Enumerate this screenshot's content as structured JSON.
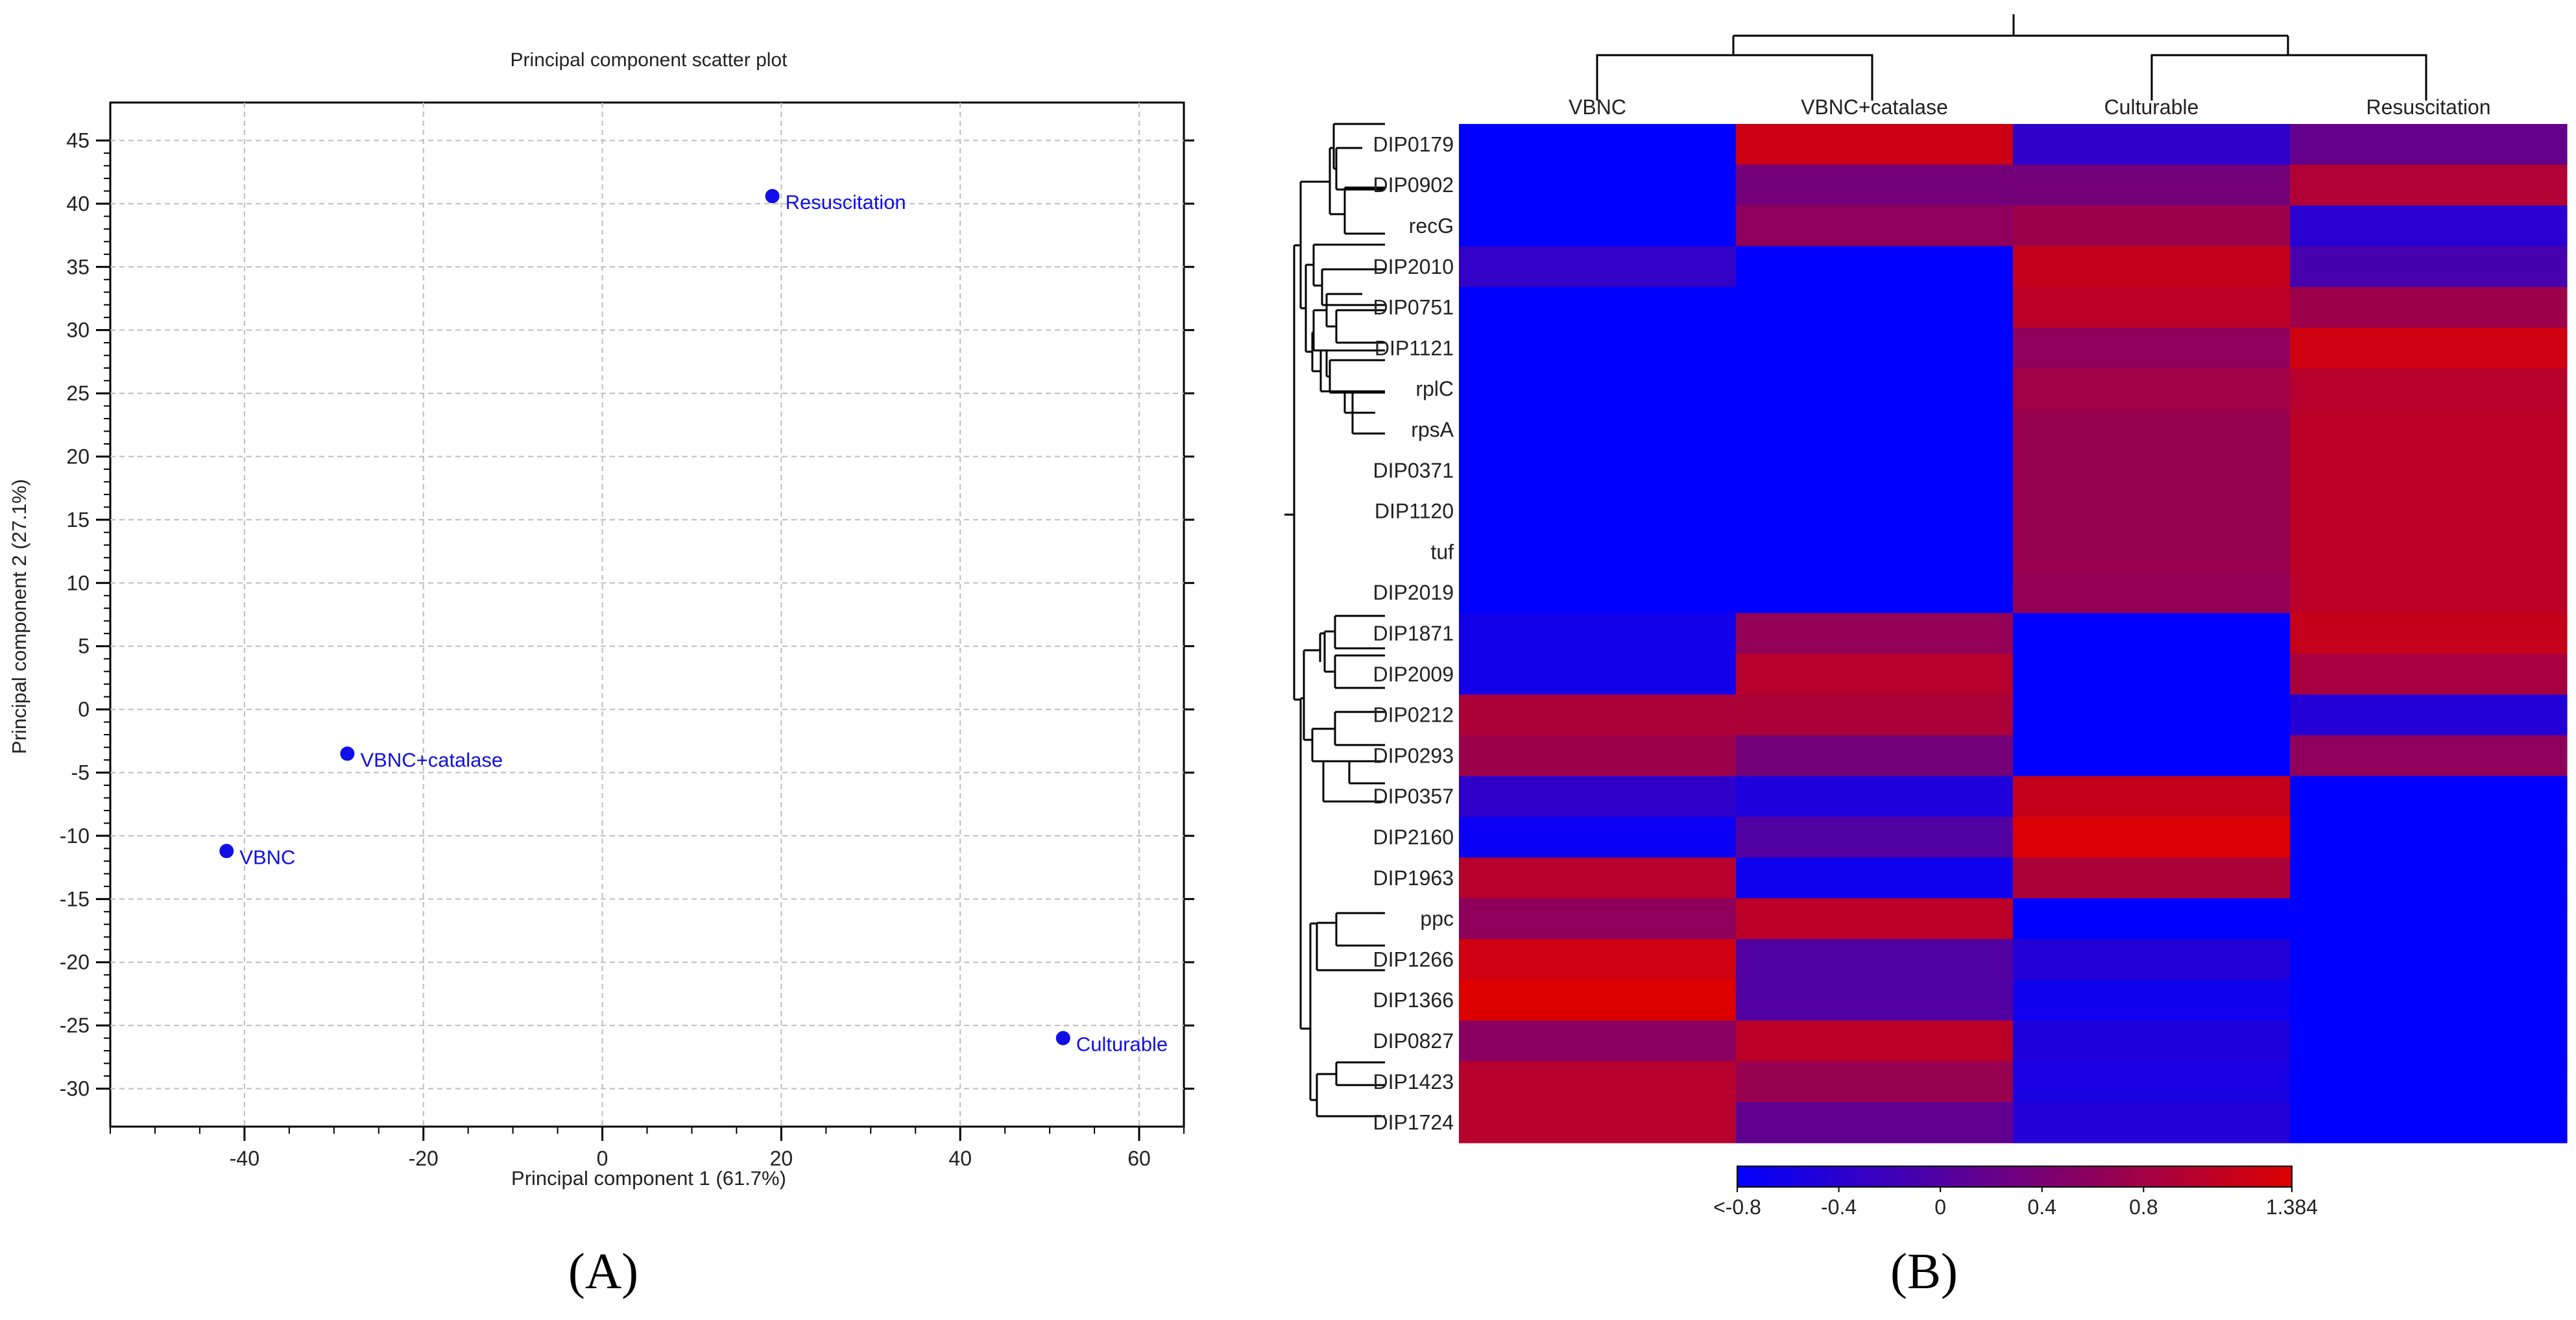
{
  "panels": {
    "a_label": "(A)",
    "b_label": "(B)"
  },
  "colors": {
    "point": "#1010e6",
    "low": "#0000ff",
    "high": "#dd0000"
  },
  "chart_data": [
    {
      "type": "scatter",
      "title": "Principal component scatter plot",
      "xlabel": "Principal component 1 (61.7%)",
      "ylabel": "Principal component 2 (27.1%)",
      "xlim": [
        -55,
        65
      ],
      "ylim": [
        -33,
        48
      ],
      "xticks": [
        -40,
        -20,
        0,
        20,
        40,
        60
      ],
      "yticks": [
        45,
        40,
        35,
        30,
        25,
        20,
        15,
        10,
        5,
        0,
        -5,
        -10,
        -15,
        -20,
        -25,
        -30
      ],
      "grid": true,
      "points": [
        {
          "label": "Resuscitation",
          "x": 19,
          "y": 40.6
        },
        {
          "label": "VBNC+catalase",
          "x": -28.5,
          "y": -3.5
        },
        {
          "label": "VBNC",
          "x": -42,
          "y": -11.2
        },
        {
          "label": "Culturable",
          "x": 51.5,
          "y": -26
        }
      ]
    },
    {
      "type": "heatmap",
      "columns": [
        "VBNC",
        "VBNC+catalase",
        "Culturable",
        "Resuscitation"
      ],
      "rows": [
        "DIP0179",
        "DIP0902",
        "recG",
        "DIP2010",
        "DIP0751",
        "DIP1121",
        "rplC",
        "rpsA",
        "DIP0371",
        "DIP1120",
        "tuf",
        "DIP2019",
        "DIP1871",
        "DIP2009",
        "DIP0212",
        "DIP0293",
        "DIP0357",
        "DIP2160",
        "DIP1963",
        "ppc",
        "DIP1266",
        "DIP1366",
        "DIP0827",
        "DIP1423",
        "DIP1724"
      ],
      "values": [
        [
          -0.8,
          1.2,
          -0.35,
          0.2
        ],
        [
          -0.8,
          0.35,
          0.35,
          0.95
        ],
        [
          -0.8,
          0.6,
          0.75,
          -0.4
        ],
        [
          -0.3,
          -0.8,
          1.15,
          -0.1
        ],
        [
          -0.8,
          -0.8,
          1.05,
          0.75
        ],
        [
          -0.8,
          -0.8,
          0.6,
          1.25
        ],
        [
          -0.8,
          -0.8,
          0.8,
          1.0
        ],
        [
          -0.8,
          -0.8,
          0.7,
          1.05
        ],
        [
          -0.8,
          -0.8,
          0.7,
          1.05
        ],
        [
          -0.8,
          -0.8,
          0.7,
          1.05
        ],
        [
          -0.8,
          -0.8,
          0.7,
          1.05
        ],
        [
          -0.8,
          -0.8,
          0.65,
          1.05
        ],
        [
          -0.6,
          0.65,
          -0.8,
          1.15
        ],
        [
          -0.6,
          1.0,
          -0.8,
          0.85
        ],
        [
          0.9,
          0.9,
          -0.8,
          -0.45
        ],
        [
          0.75,
          0.35,
          -0.8,
          0.6
        ],
        [
          -0.35,
          -0.5,
          1.15,
          -0.8
        ],
        [
          -0.7,
          0.0,
          1.35,
          -0.8
        ],
        [
          1.0,
          -0.65,
          0.9,
          -0.8
        ],
        [
          0.6,
          1.05,
          -0.8,
          -0.8
        ],
        [
          1.25,
          0.0,
          -0.45,
          -0.8
        ],
        [
          1.38,
          0.0,
          -0.65,
          -0.8
        ],
        [
          0.55,
          1.05,
          -0.5,
          -0.8
        ],
        [
          1.0,
          0.7,
          -0.55,
          -0.8
        ],
        [
          1.0,
          0.15,
          -0.45,
          -0.8
        ]
      ],
      "colorbar": {
        "min": -0.8,
        "max": 1.384,
        "tick_values": [
          -0.8,
          -0.4,
          0,
          0.4,
          0.8,
          1.384
        ],
        "tick_labels": [
          "<-0.8",
          "-0.4",
          "0",
          "0.4",
          "0.8",
          "1.384"
        ]
      },
      "column_dendrogram": [
        [
          "VBNC",
          "VBNC+catalase"
        ],
        [
          "Culturable",
          "Resuscitation"
        ]
      ]
    }
  ]
}
